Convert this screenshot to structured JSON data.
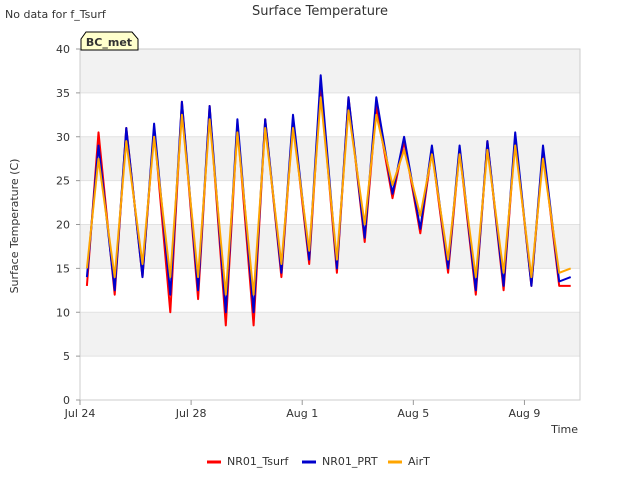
{
  "page": {
    "corner_note": "No data for f_Tsurf",
    "badge": "BC_met"
  },
  "chart_data": {
    "type": "line",
    "title": "Surface Temperature",
    "xlabel": "Time",
    "ylabel": "Surface Temperature (C)",
    "xlim": [
      "2016-07-24",
      "2016-08-11"
    ],
    "ylim": [
      0,
      40
    ],
    "yticks": [
      0,
      5,
      10,
      15,
      20,
      25,
      30,
      35,
      40
    ],
    "xticks": [
      {
        "value": "2016-07-24",
        "label": "Jul 24"
      },
      {
        "value": "2016-07-28",
        "label": "Jul 28"
      },
      {
        "value": "2016-08-01",
        "label": "Aug 1"
      },
      {
        "value": "2016-08-05",
        "label": "Aug 5"
      },
      {
        "value": "2016-08-09",
        "label": "Aug 9"
      }
    ],
    "grid": true,
    "background_bands": true,
    "legend_position": "bottom",
    "colors": {
      "NR01_Tsurf": "#ff0000",
      "NR01_PRT": "#0000cc",
      "AirT": "#ffa500"
    },
    "series": [
      {
        "name": "NR01_Tsurf",
        "x": [
          "2016-07-24 06:00",
          "2016-07-24 16:00",
          "2016-07-25 06:00",
          "2016-07-25 16:00",
          "2016-07-26 06:00",
          "2016-07-26 16:00",
          "2016-07-27 06:00",
          "2016-07-27 16:00",
          "2016-07-28 06:00",
          "2016-07-28 16:00",
          "2016-07-29 06:00",
          "2016-07-29 16:00",
          "2016-07-30 06:00",
          "2016-07-30 16:00",
          "2016-07-31 06:00",
          "2016-07-31 16:00",
          "2016-08-01 06:00",
          "2016-08-01 16:00",
          "2016-08-02 06:00",
          "2016-08-02 16:00",
          "2016-08-03 06:00",
          "2016-08-03 16:00",
          "2016-08-04 06:00",
          "2016-08-04 16:00",
          "2016-08-05 06:00",
          "2016-08-05 16:00",
          "2016-08-06 06:00",
          "2016-08-06 16:00",
          "2016-08-07 06:00",
          "2016-08-07 16:00",
          "2016-08-08 06:00",
          "2016-08-08 16:00",
          "2016-08-09 06:00",
          "2016-08-09 16:00",
          "2016-08-10 06:00",
          "2016-08-10 16:00"
        ],
        "y": [
          13,
          30.5,
          12,
          31,
          14,
          31,
          10,
          34,
          11.5,
          33.5,
          8.5,
          31.5,
          8.5,
          32,
          14,
          32,
          15.5,
          36,
          14.5,
          34.5,
          18,
          33.5,
          23,
          29.5,
          19,
          28.5,
          14.5,
          28.5,
          12,
          29.5,
          12.5,
          30,
          13,
          28.5,
          13,
          13
        ]
      },
      {
        "name": "NR01_PRT",
        "x": [
          "2016-07-24 06:00",
          "2016-07-24 16:00",
          "2016-07-25 06:00",
          "2016-07-25 16:00",
          "2016-07-26 06:00",
          "2016-07-26 16:00",
          "2016-07-27 06:00",
          "2016-07-27 16:00",
          "2016-07-28 06:00",
          "2016-07-28 16:00",
          "2016-07-29 06:00",
          "2016-07-29 16:00",
          "2016-07-30 06:00",
          "2016-07-30 16:00",
          "2016-07-31 06:00",
          "2016-07-31 16:00",
          "2016-08-01 06:00",
          "2016-08-01 16:00",
          "2016-08-02 06:00",
          "2016-08-02 16:00",
          "2016-08-03 06:00",
          "2016-08-03 16:00",
          "2016-08-04 06:00",
          "2016-08-04 16:00",
          "2016-08-05 06:00",
          "2016-08-05 16:00",
          "2016-08-06 06:00",
          "2016-08-06 16:00",
          "2016-08-07 06:00",
          "2016-08-07 16:00",
          "2016-08-08 06:00",
          "2016-08-08 16:00",
          "2016-08-09 06:00",
          "2016-08-09 16:00",
          "2016-08-10 06:00",
          "2016-08-10 16:00"
        ],
        "y": [
          14,
          29,
          12.5,
          31,
          14,
          31.5,
          12,
          34,
          12.5,
          33.5,
          10,
          32,
          10,
          32,
          14.5,
          32.5,
          16,
          37,
          15,
          34.5,
          18.5,
          34.5,
          23.5,
          30,
          19.5,
          29,
          15,
          29,
          12.5,
          29.5,
          13,
          30.5,
          13,
          29,
          13.5,
          14
        ]
      },
      {
        "name": "AirT",
        "x": [
          "2016-07-24 06:00",
          "2016-07-24 16:00",
          "2016-07-25 06:00",
          "2016-07-25 16:00",
          "2016-07-26 06:00",
          "2016-07-26 16:00",
          "2016-07-27 06:00",
          "2016-07-27 16:00",
          "2016-07-28 06:00",
          "2016-07-28 16:00",
          "2016-07-29 06:00",
          "2016-07-29 16:00",
          "2016-07-30 06:00",
          "2016-07-30 16:00",
          "2016-07-31 06:00",
          "2016-07-31 16:00",
          "2016-08-01 06:00",
          "2016-08-01 16:00",
          "2016-08-02 06:00",
          "2016-08-02 16:00",
          "2016-08-03 06:00",
          "2016-08-03 16:00",
          "2016-08-04 06:00",
          "2016-08-04 16:00",
          "2016-08-05 06:00",
          "2016-08-05 16:00",
          "2016-08-06 06:00",
          "2016-08-06 16:00",
          "2016-08-07 06:00",
          "2016-08-07 16:00",
          "2016-08-08 06:00",
          "2016-08-08 16:00",
          "2016-08-09 06:00",
          "2016-08-09 16:00",
          "2016-08-10 06:00",
          "2016-08-10 16:00"
        ],
        "y": [
          15,
          27.5,
          14,
          29.5,
          15.5,
          30,
          14,
          32.5,
          14,
          32,
          12,
          30.5,
          12,
          31,
          15.5,
          31,
          17,
          34.5,
          16,
          33,
          20,
          32.5,
          24.5,
          28.5,
          21,
          28,
          16,
          28,
          14,
          28.5,
          14.5,
          29,
          14,
          27.5,
          14.5,
          15
        ]
      }
    ]
  }
}
